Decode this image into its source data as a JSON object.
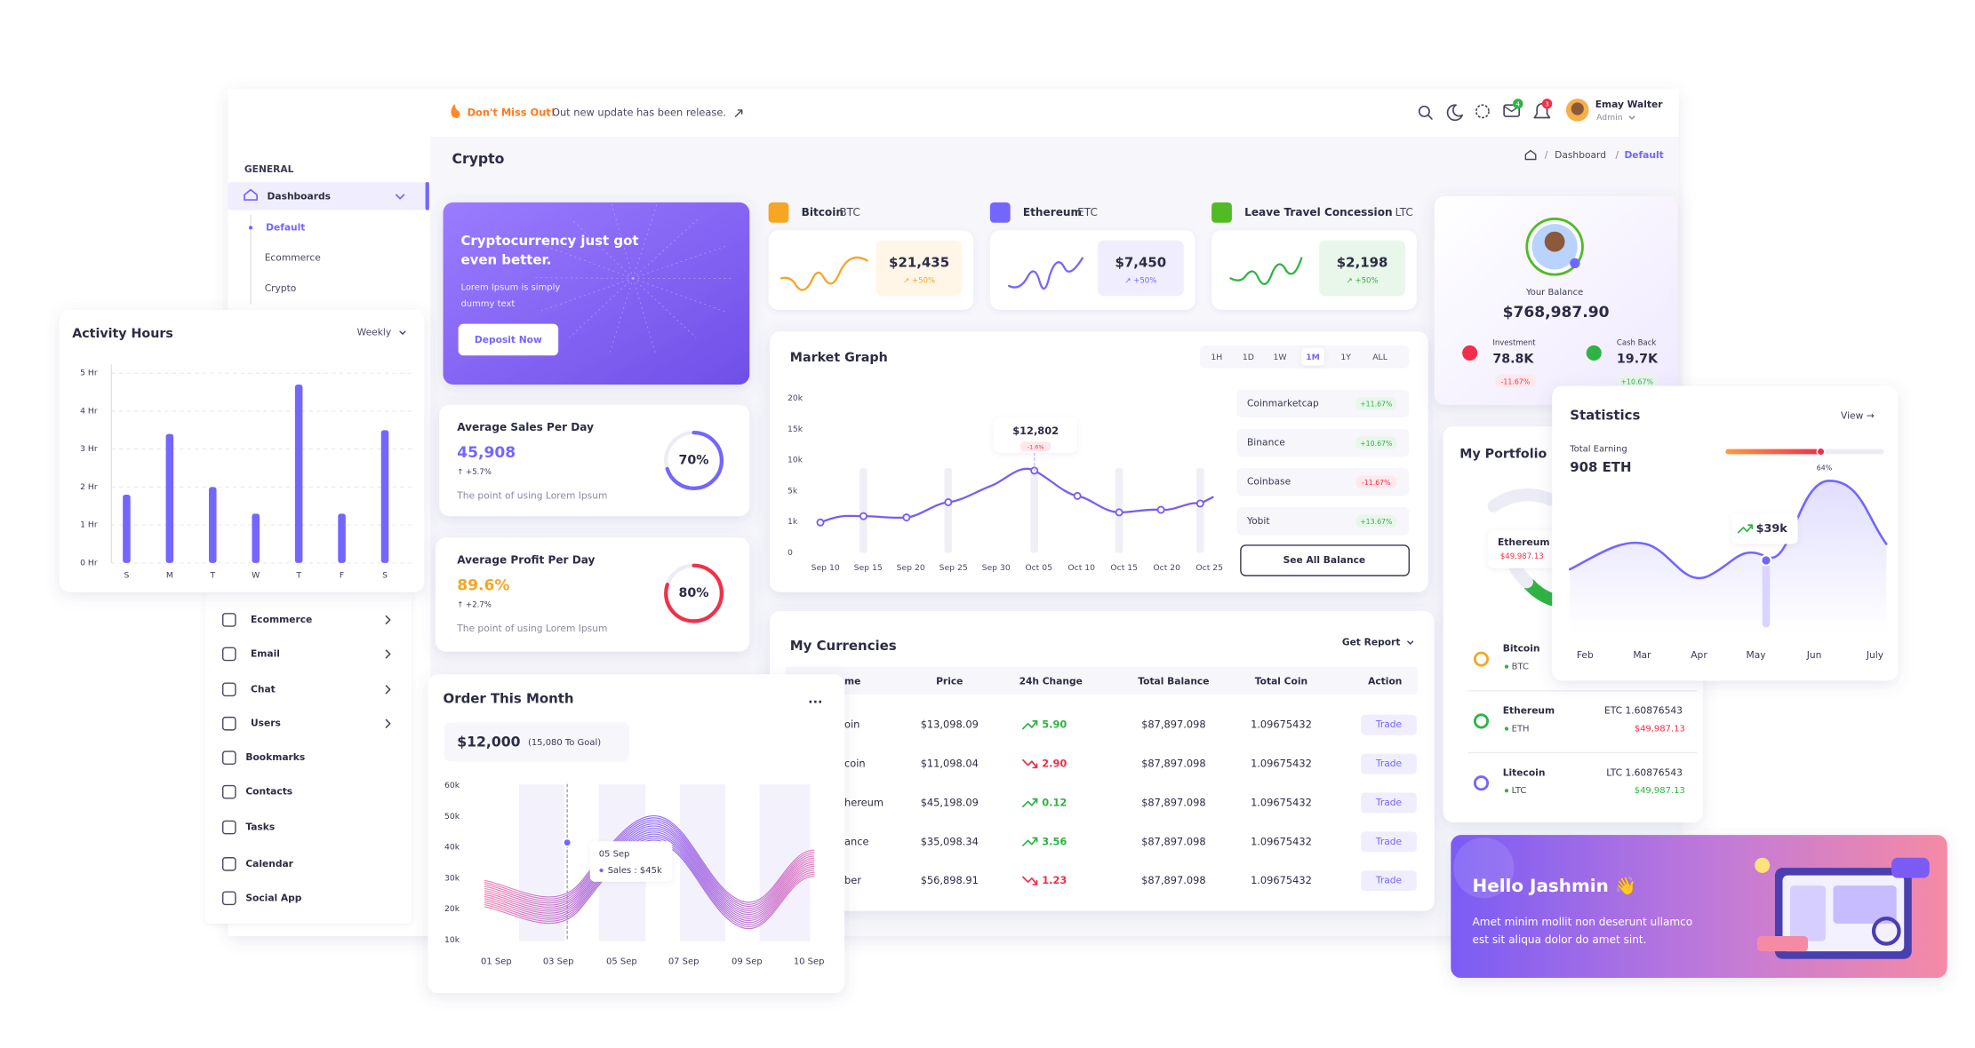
{
  "topbar": {
    "notice_title": "Don't Miss Out!",
    "notice_text": "Out new update has been release.",
    "badges": [
      "4",
      "3"
    ],
    "user_name": "Emay Walter",
    "user_role": "Admin"
  },
  "page": {
    "title": "Crypto",
    "breadcrumb": [
      "Dashboard",
      "Default"
    ]
  },
  "sidebar": {
    "section": "GENERAL",
    "active": "Dashboards",
    "subitems": [
      "Default",
      "Ecommerce",
      "Crypto"
    ],
    "items": [
      "Ecommerce",
      "Email",
      "Chat",
      "Users",
      "Bookmarks",
      "Contacts",
      "Tasks",
      "Calendar",
      "Social App"
    ]
  },
  "activity_hours": {
    "period": "Weekly",
    "chart_data": {
      "type": "bar",
      "title": "Activity Hours",
      "categories": [
        "S",
        "M",
        "T",
        "W",
        "T",
        "F",
        "S"
      ],
      "values": [
        1.8,
        3.4,
        2,
        1.3,
        4.7,
        1.3,
        3.5
      ],
      "color": "#7366ff",
      "ylim": [
        0,
        5
      ],
      "yticks": [
        {
          "value": 0,
          "label": "0 Hr"
        },
        {
          "value": 1,
          "label": "1 Hr"
        },
        {
          "value": 2,
          "label": "2 Hr"
        },
        {
          "value": 3,
          "label": "3 Hr"
        },
        {
          "value": 4,
          "label": "4 Hr"
        },
        {
          "value": 5,
          "label": "5 Hr"
        }
      ],
      "grid": true
    }
  },
  "promo": {
    "title_lines": [
      "Cryptocurrency just got",
      "even better."
    ],
    "text_lines": [
      "Lorem Ipsum is simply",
      "dummy text"
    ],
    "button": "Deposit Now"
  },
  "stat_cards": [
    {
      "title": "Average Sales Per Day",
      "value": "45,908",
      "change": "↑ +5.7%",
      "text": "The point of using Lorem Ipsum",
      "ring": {
        "value": 70,
        "label": "70%"
      }
    },
    {
      "title": "Average Profit Per Day",
      "value": "89.6%",
      "change": "↑ +2.7%",
      "text": "The point of using Lorem Ipsum",
      "ring": {
        "value": 80,
        "label": "80%"
      }
    }
  ],
  "order": {
    "title": "Order This Month",
    "menu": "...",
    "amount": "$12,000",
    "goal": "(15,080 To Goal)",
    "yticks": [
      "60k",
      "50k",
      "40k",
      "30k",
      "20k",
      "10k"
    ],
    "xlabels": [
      "01 Sep",
      "03 Sep",
      "05 Sep",
      "07 Sep",
      "09 Sep",
      "10 Sep"
    ],
    "tooltip_date": "05 Sep",
    "tooltip_value": "Sales : $45k"
  },
  "coins": [
    {
      "name": "Bitcoin",
      "symbol": "BTC",
      "price": "$21,435",
      "change": "↗ +50%"
    },
    {
      "name": "Ethereum",
      "symbol": "ETC",
      "price": "$7,450",
      "change": "↗ +50%"
    },
    {
      "name": "Leave Travel Concession",
      "symbol": "LTC",
      "price": "$2,198",
      "change": "↗ +50%"
    }
  ],
  "market": {
    "title": "Market Graph",
    "ranges": [
      "1H",
      "1D",
      "1W",
      "1M",
      "1Y",
      "ALL"
    ],
    "yticks": [
      "20k",
      "15k",
      "10k",
      "5k",
      "1k",
      "0"
    ],
    "xlabels": [
      "Sep 10",
      "Sep 15",
      "Sep 20",
      "Sep 25",
      "Sep 30",
      "Oct 05",
      "Oct 10",
      "Oct 15",
      "Oct 20",
      "Oct 25"
    ],
    "tooltip_value": "$12,802",
    "tooltip_change": "-1.6%",
    "exchanges": [
      {
        "name": "Coinmarketcap",
        "change": "+11.67%"
      },
      {
        "name": "Binance",
        "change": "+10.67%"
      },
      {
        "name": "Coinbase",
        "change": "-11.67%"
      },
      {
        "name": "Yobit",
        "change": "+13.67%"
      }
    ],
    "button": "See All Balance"
  },
  "currencies": {
    "title": "My Currencies",
    "report": "Get Report",
    "headers": [
      "me",
      "Price",
      "24h Change",
      "Total Balance",
      "Total Coin",
      "Action"
    ],
    "rows": [
      [
        "oin",
        "$13,098.09",
        "5.90",
        "$87,897.098",
        "1.09675432",
        "Trade"
      ],
      [
        "coin",
        "$11,098.04",
        "2.90",
        "$87,897.098",
        "1.09675432",
        "Trade"
      ],
      [
        "hereum",
        "$45,198.09",
        "0.12",
        "$87,897.098",
        "1.09675432",
        "Trade"
      ],
      [
        "ance",
        "$35,098.34",
        "3.56",
        "$87,897.098",
        "1.09675432",
        "Trade"
      ],
      [
        "ber",
        "$56,898.91",
        "1.23",
        "$87,897.098",
        "1.09675432",
        "Trade"
      ]
    ],
    "change_colors": [
      "#2fb344",
      "#f0304a",
      "#2fb344",
      "#2fb344",
      "#f0304a"
    ]
  },
  "balance": {
    "label": "Your Balance",
    "amount": "$768,987.90",
    "investment": {
      "label": "Investment",
      "value": "78.8K",
      "change": "-11.67%"
    },
    "cashback": {
      "label": "Cash Back",
      "value": "19.7K",
      "change": "+10.67%"
    }
  },
  "portfolio": {
    "title": "My Portfolio",
    "highlight_name": "Ethereum",
    "highlight_value": "$49,987.13",
    "assets": [
      {
        "name": "Bitcoin",
        "symbol": "BTC"
      },
      {
        "name": "Ethereum",
        "symbol": "ETH",
        "amount": "ETC 1.60876543",
        "value": "$49,987.13"
      },
      {
        "name": "Litecoin",
        "symbol": "LTC",
        "amount": "LTC 1.60876543",
        "value": "$49,987.13"
      }
    ]
  },
  "statistics": {
    "title": "Statistics",
    "link": "View →",
    "label": "Total Earning",
    "value": "908 ETH",
    "progress": {
      "value": 64,
      "label": "64%"
    },
    "tooltip": "$39k",
    "xlabels": [
      "Feb",
      "Mar",
      "Apr",
      "May",
      "Jun",
      "July"
    ]
  },
  "hello": {
    "title": "Hello Jashmin 👋",
    "lines": [
      "Amet minim mollit non deserunt ullamco",
      "est sit aliqua dolor do amet sint."
    ]
  }
}
